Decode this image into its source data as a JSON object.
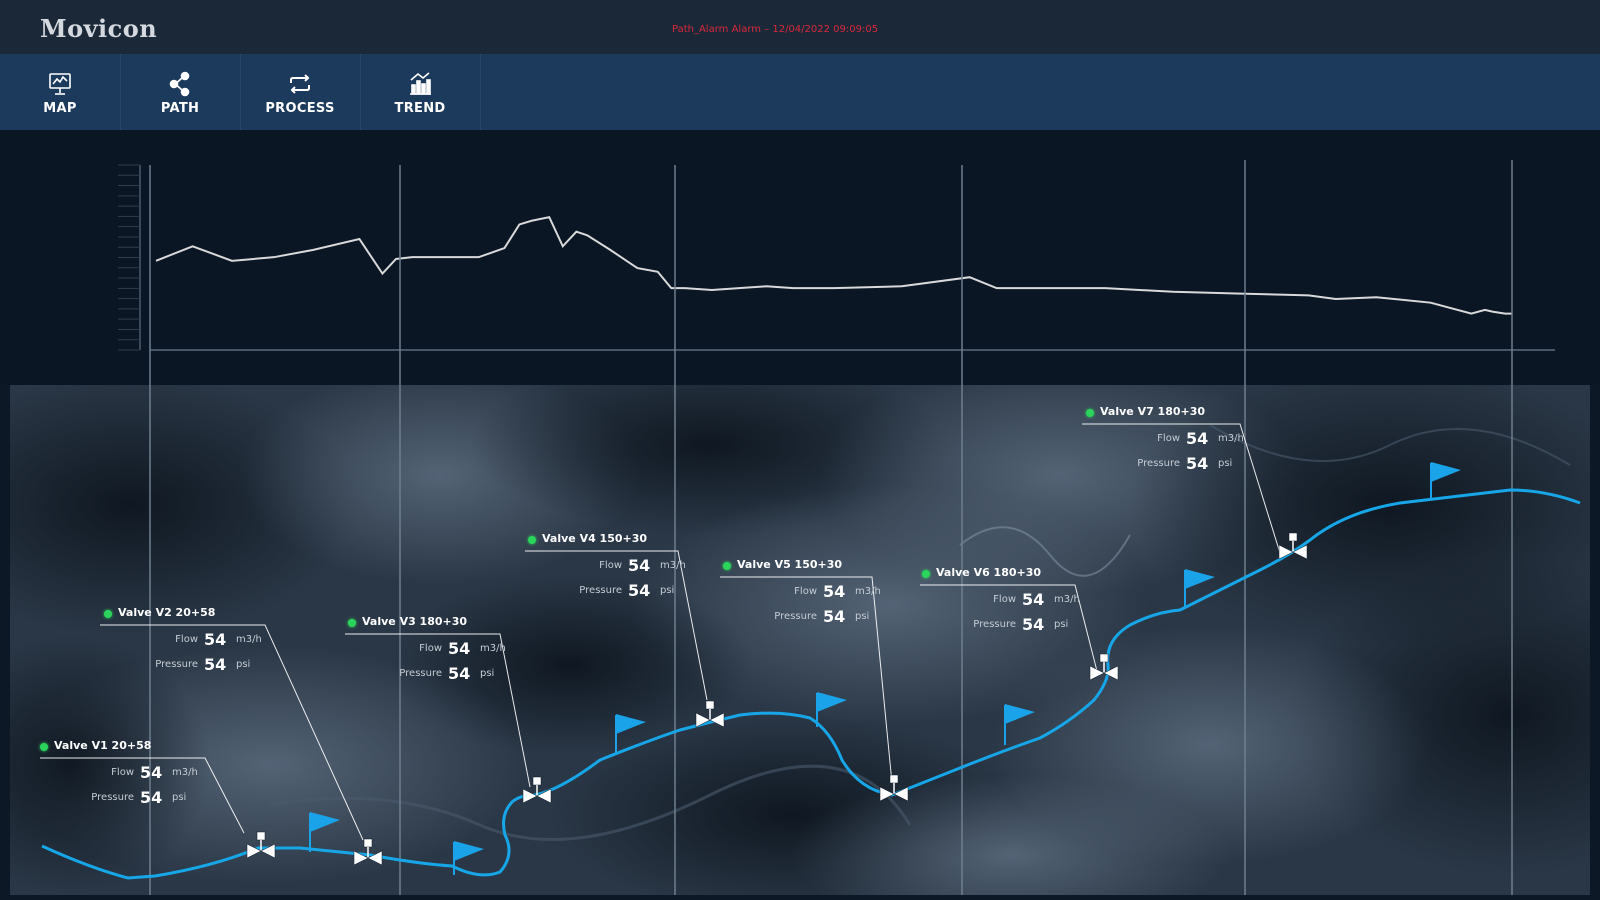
{
  "app": {
    "brand": "Movicon",
    "alarm_text": "Path_Alarm Alarm – 12/04/2022 09:09:05"
  },
  "nav": [
    {
      "label": "MAP",
      "icon": "map-icon"
    },
    {
      "label": "PATH",
      "icon": "share-icon"
    },
    {
      "label": "PROCESS",
      "icon": "repeat-icon"
    },
    {
      "label": "TREND",
      "icon": "trend-icon"
    }
  ],
  "colors": {
    "topbar": "#1b2838",
    "navbar": "#1c3a5c",
    "background": "#0c1826",
    "pipeline": "#17a6e8",
    "flag": "#1aa3e8",
    "status_ok": "#2bd45a",
    "alarm": "#d8283c"
  },
  "valves": [
    {
      "name": "Valve V1 20+58",
      "flow_label": "Flow",
      "flow": "54",
      "flow_unit": "m3/h",
      "pressure_label": "Pressure",
      "pressure": "54",
      "pressure_unit": "psi",
      "status": "ok"
    },
    {
      "name": "Valve V2 20+58",
      "flow_label": "Flow",
      "flow": "54",
      "flow_unit": "m3/h",
      "pressure_label": "Pressure",
      "pressure": "54",
      "pressure_unit": "psi",
      "status": "ok"
    },
    {
      "name": "Valve V3 180+30",
      "flow_label": "Flow",
      "flow": "54",
      "flow_unit": "m3/h",
      "pressure_label": "Pressure",
      "pressure": "54",
      "pressure_unit": "psi",
      "status": "ok"
    },
    {
      "name": "Valve V4 150+30",
      "flow_label": "Flow",
      "flow": "54",
      "flow_unit": "m3/h",
      "pressure_label": "Pressure",
      "pressure": "54",
      "pressure_unit": "psi",
      "status": "ok"
    },
    {
      "name": "Valve V5 150+30",
      "flow_label": "Flow",
      "flow": "54",
      "flow_unit": "m3/h",
      "pressure_label": "Pressure",
      "pressure": "54",
      "pressure_unit": "psi",
      "status": "ok"
    },
    {
      "name": "Valve V6 180+30",
      "flow_label": "Flow",
      "flow": "54",
      "flow_unit": "m3/h",
      "pressure_label": "Pressure",
      "pressure": "54",
      "pressure_unit": "psi",
      "status": "ok"
    },
    {
      "name": "Valve V7 180+30",
      "flow_label": "Flow",
      "flow": "54",
      "flow_unit": "m3/h",
      "pressure_label": "Pressure",
      "pressure": "54",
      "pressure_unit": "psi",
      "status": "ok"
    }
  ],
  "chart_data": {
    "type": "line",
    "title": "",
    "xlabel": "",
    "ylabel": "",
    "x_range": [
      0,
      1
    ],
    "ylim": [
      0,
      100
    ],
    "grid": false,
    "series": [
      {
        "x": [
          0,
          0.027,
          0.056,
          0.087,
          0.116,
          0.15,
          0.167,
          0.177,
          0.189,
          0.202,
          0.218,
          0.238,
          0.257,
          0.268,
          0.277,
          0.29,
          0.3,
          0.31,
          0.318,
          0.335,
          0.355,
          0.37,
          0.38,
          0.39,
          0.41,
          0.43,
          0.45,
          0.47,
          0.5,
          0.55,
          0.6,
          0.62,
          0.64,
          0.66,
          0.7,
          0.75,
          0.8,
          0.85,
          0.87,
          0.9,
          0.94,
          0.97,
          0.98,
          0.986,
          0.995,
          1
        ],
        "values": [
          49,
          57,
          49,
          51,
          55,
          61,
          42,
          50,
          51,
          51,
          51,
          51,
          56,
          69,
          71,
          73,
          57,
          65,
          63,
          55,
          45,
          43,
          34,
          34,
          33,
          34,
          35,
          34,
          34,
          35,
          40,
          34,
          34,
          34,
          34,
          32,
          31,
          30,
          28,
          29,
          26,
          20,
          22,
          21,
          20,
          20
        ]
      }
    ]
  }
}
